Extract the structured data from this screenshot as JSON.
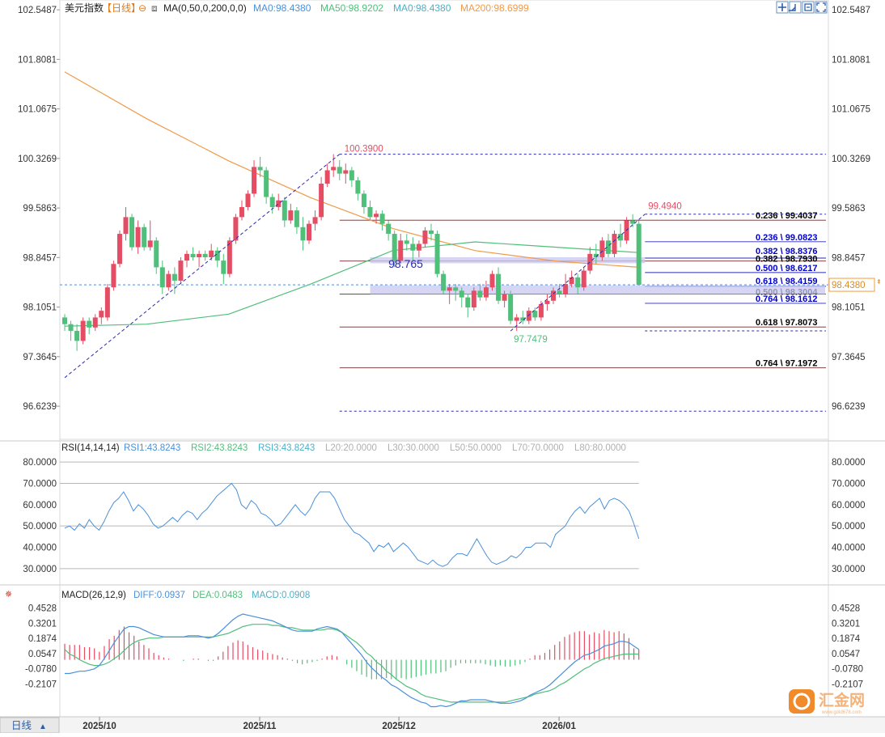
{
  "header": {
    "title": "美元指数",
    "period_tag": "【日线】",
    "ma_indicator": "MA(0,50,0,200,0,0)",
    "ma_values": [
      {
        "label": "MA0:98.4380",
        "color": "#4a90d9"
      },
      {
        "label": "MA50:98.9202",
        "color": "#4fbf7a"
      },
      {
        "label": "MA0:98.4380",
        "color": "#4ab0c8"
      },
      {
        "label": "MA200:98.6999",
        "color": "#f09a4a"
      }
    ],
    "tool_icons": [
      "crosshair-icon",
      "zoom-in-icon",
      "chart-settings-icon",
      "fullscreen-icon"
    ]
  },
  "price_axis": {
    "ticks": [
      "102.5487",
      "101.8081",
      "101.0675",
      "100.3269",
      "99.5863",
      "98.8457",
      "98.1051",
      "97.3645",
      "96.6239"
    ],
    "current_price": "98.4380"
  },
  "annotations": {
    "high_label": "100.3900",
    "recent_high_label": "99.4940",
    "low_label": "97.7479",
    "mid_label": "98.765",
    "fibs": [
      {
        "label": "0.236 \\ 99.4037",
        "color": "#000000"
      },
      {
        "label": "0.236 \\ 99.0823",
        "color": "#0000cc"
      },
      {
        "label": "0.382 \\ 98.8376",
        "color": "#0000cc"
      },
      {
        "label": "0.382 \\ 98.7930",
        "color": "#000000"
      },
      {
        "label": "0.500 \\ 98.6217",
        "color": "#0000cc"
      },
      {
        "label": "0.618 \\ 98.4159",
        "color": "#0000cc"
      },
      {
        "label": "0.500 \\ 98.3004",
        "color": "#000000"
      },
      {
        "label": "0.764 \\ 98.1612",
        "color": "#0000cc"
      },
      {
        "label": "0.618 \\ 97.8073",
        "color": "#000000"
      },
      {
        "label": "0.764 \\ 97.1972",
        "color": "#000000"
      }
    ]
  },
  "rsi": {
    "title": "RSI(14,14,14)",
    "values": [
      {
        "label": "RSI1:43.8243",
        "color": "#4a90d9"
      },
      {
        "label": "RSI2:43.8243",
        "color": "#4fbf7a"
      },
      {
        "label": "RSI3:43.8243",
        "color": "#4ab0c8"
      },
      {
        "label": "L20:20.0000",
        "color": "#b0b0b0"
      },
      {
        "label": "L30:30.0000",
        "color": "#b0b0b0"
      },
      {
        "label": "L50:50.0000",
        "color": "#b0b0b0"
      },
      {
        "label": "L70:70.0000",
        "color": "#b0b0b0"
      },
      {
        "label": "L80:80.0000",
        "color": "#b0b0b0"
      }
    ],
    "ticks": [
      "80.0000",
      "70.0000",
      "60.0000",
      "50.0000",
      "40.0000",
      "30.0000"
    ],
    "series": [
      49,
      50,
      48,
      51,
      49,
      53,
      50,
      48,
      52,
      57,
      61,
      63,
      66,
      62,
      57,
      60,
      58,
      55,
      51,
      49,
      50,
      52,
      54,
      52,
      55,
      57,
      56,
      53,
      56,
      58,
      61,
      64,
      66,
      68,
      70,
      67,
      60,
      58,
      62,
      60,
      56,
      55,
      53,
      50,
      51,
      54,
      57,
      60,
      57,
      55,
      58,
      63,
      66,
      66,
      66,
      63,
      58,
      53,
      50,
      47,
      46,
      44,
      42,
      38,
      41,
      40,
      42,
      38,
      40,
      42,
      40,
      37,
      34,
      33,
      32,
      34,
      32,
      31,
      32,
      35,
      37,
      37,
      36,
      40,
      44,
      40,
      36,
      33,
      32,
      33,
      34,
      36,
      35,
      37,
      40,
      40,
      42,
      42,
      42,
      40,
      46,
      48,
      50,
      54,
      57,
      59,
      56,
      59,
      61,
      63,
      58,
      62,
      63,
      62,
      60,
      57,
      51,
      44
    ]
  },
  "macd": {
    "title": "MACD(26,12,9)",
    "values": [
      {
        "label": "DIFF:0.0937",
        "color": "#4a90d9"
      },
      {
        "label": "DEA:0.0483",
        "color": "#4fbf7a"
      },
      {
        "label": "MACD:0.0908",
        "color": "#4ab0c8"
      }
    ],
    "ticks": [
      "0.4528",
      "0.3201",
      "0.1874",
      "0.0547",
      "-0.0780",
      "-0.2107"
    ],
    "diff": [
      -0.12,
      -0.12,
      -0.11,
      -0.1,
      -0.1,
      -0.09,
      -0.08,
      -0.05,
      0.01,
      0.08,
      0.15,
      0.21,
      0.27,
      0.29,
      0.29,
      0.28,
      0.26,
      0.24,
      0.22,
      0.21,
      0.2,
      0.2,
      0.2,
      0.2,
      0.2,
      0.21,
      0.21,
      0.21,
      0.2,
      0.19,
      0.2,
      0.23,
      0.27,
      0.31,
      0.35,
      0.38,
      0.4,
      0.39,
      0.38,
      0.37,
      0.36,
      0.35,
      0.34,
      0.32,
      0.3,
      0.28,
      0.26,
      0.25,
      0.25,
      0.25,
      0.25,
      0.27,
      0.28,
      0.29,
      0.28,
      0.27,
      0.24,
      0.19,
      0.14,
      0.09,
      0.04,
      -0.02,
      -0.07,
      -0.11,
      -0.15,
      -0.18,
      -0.22,
      -0.24,
      -0.27,
      -0.3,
      -0.33,
      -0.35,
      -0.37,
      -0.38,
      -0.41,
      -0.41,
      -0.4,
      -0.41,
      -0.4,
      -0.38,
      -0.36,
      -0.36,
      -0.35,
      -0.35,
      -0.35,
      -0.35,
      -0.36,
      -0.37,
      -0.38,
      -0.38,
      -0.38,
      -0.37,
      -0.36,
      -0.34,
      -0.31,
      -0.29,
      -0.27,
      -0.25,
      -0.22,
      -0.18,
      -0.14,
      -0.1,
      -0.06,
      -0.02,
      0.01,
      0.04,
      0.05,
      0.07,
      0.09,
      0.12,
      0.13,
      0.14,
      0.16,
      0.16,
      0.15,
      0.12,
      0.09
    ],
    "dea": [
      0.09,
      0.05,
      0.03,
      0.0,
      -0.02,
      -0.04,
      -0.05,
      -0.05,
      -0.04,
      -0.02,
      0.01,
      0.04,
      0.08,
      0.12,
      0.15,
      0.17,
      0.18,
      0.19,
      0.19,
      0.19,
      0.2,
      0.2,
      0.2,
      0.2,
      0.2,
      0.2,
      0.2,
      0.2,
      0.2,
      0.2,
      0.2,
      0.21,
      0.22,
      0.23,
      0.25,
      0.27,
      0.29,
      0.3,
      0.31,
      0.31,
      0.31,
      0.31,
      0.3,
      0.3,
      0.29,
      0.28,
      0.28,
      0.27,
      0.26,
      0.26,
      0.26,
      0.26,
      0.26,
      0.27,
      0.27,
      0.26,
      0.24,
      0.21,
      0.18,
      0.15,
      0.11,
      0.06,
      0.03,
      -0.02,
      -0.05,
      -0.1,
      -0.13,
      -0.17,
      -0.2,
      -0.23,
      -0.25,
      -0.27,
      -0.3,
      -0.32,
      -0.33,
      -0.34,
      -0.35,
      -0.36,
      -0.37,
      -0.37,
      -0.37,
      -0.37,
      -0.37,
      -0.37,
      -0.37,
      -0.37,
      -0.37,
      -0.37,
      -0.37,
      -0.37,
      -0.36,
      -0.35,
      -0.34,
      -0.33,
      -0.32,
      -0.3,
      -0.29,
      -0.28,
      -0.27,
      -0.25,
      -0.22,
      -0.2,
      -0.17,
      -0.14,
      -0.11,
      -0.08,
      -0.06,
      -0.03,
      -0.01,
      0.01,
      0.02,
      0.03,
      0.04,
      0.05,
      0.05,
      0.05,
      0.05
    ],
    "hist": [
      0.14,
      0.13,
      0.13,
      0.13,
      0.11,
      0.11,
      0.1,
      0.07,
      0.12,
      0.18,
      0.21,
      0.26,
      0.29,
      0.24,
      0.21,
      0.16,
      0.13,
      0.1,
      0.06,
      0.04,
      0.02,
      0.01,
      0.0,
      0.0,
      -0.01,
      0.0,
      0.01,
      0.01,
      0.0,
      -0.01,
      -0.01,
      0.03,
      0.07,
      0.12,
      0.15,
      0.17,
      0.16,
      0.13,
      0.11,
      0.09,
      0.08,
      0.06,
      0.05,
      0.04,
      0.02,
      0.01,
      -0.01,
      -0.03,
      -0.04,
      -0.03,
      -0.02,
      -0.01,
      0.01,
      0.03,
      0.04,
      0.03,
      0.0,
      -0.04,
      -0.07,
      -0.1,
      -0.13,
      -0.15,
      -0.17,
      -0.17,
      -0.17,
      -0.16,
      -0.17,
      -0.17,
      -0.16,
      -0.17,
      -0.16,
      -0.15,
      -0.14,
      -0.13,
      -0.12,
      -0.12,
      -0.11,
      -0.1,
      -0.07,
      -0.05,
      -0.03,
      -0.03,
      -0.03,
      -0.03,
      -0.03,
      -0.04,
      -0.05,
      -0.06,
      -0.05,
      -0.06,
      -0.06,
      -0.05,
      -0.04,
      -0.02,
      0.01,
      0.04,
      0.04,
      0.06,
      0.09,
      0.13,
      0.16,
      0.2,
      0.22,
      0.24,
      0.25,
      0.25,
      0.22,
      0.24,
      0.23,
      0.26,
      0.25,
      0.24,
      0.25,
      0.23,
      0.19,
      0.1,
      0.09
    ]
  },
  "time_axis": {
    "ticks": [
      {
        "label": "2025/10",
        "index": 5
      },
      {
        "label": "2025/11",
        "index": 28
      },
      {
        "label": "2025/12",
        "index": 48
      },
      {
        "label": "2026/01",
        "index": 71
      }
    ]
  },
  "footer": {
    "period_label": "日线",
    "period_arrow": "▲"
  },
  "watermark": {
    "text": "汇金网",
    "sub": "www.gold678.com"
  },
  "colors": {
    "up": "#e54d64",
    "down": "#4fbf7a",
    "ma200": "#f09a4a",
    "ma50": "#4fbf7a"
  },
  "chart_data": {
    "type": "candlestick",
    "title": "美元指数",
    "x_start": "2025/09/22",
    "ylim": [
      96.25,
      102.55
    ],
    "candles": [
      [
        97.95,
        98.0,
        97.75,
        97.85
      ],
      [
        97.85,
        97.9,
        97.6,
        97.75
      ],
      [
        97.75,
        97.85,
        97.45,
        97.6
      ],
      [
        97.6,
        97.95,
        97.55,
        97.9
      ],
      [
        97.9,
        97.95,
        97.7,
        97.8
      ],
      [
        97.8,
        98.0,
        97.75,
        97.95
      ],
      [
        97.95,
        98.1,
        97.85,
        98.05
      ],
      [
        97.95,
        98.45,
        97.9,
        98.4
      ],
      [
        98.4,
        98.8,
        98.35,
        98.75
      ],
      [
        98.75,
        99.25,
        98.7,
        99.2
      ],
      [
        99.2,
        99.6,
        99.1,
        99.45
      ],
      [
        99.45,
        99.5,
        98.95,
        99.0
      ],
      [
        99.0,
        99.4,
        98.9,
        99.3
      ],
      [
        99.3,
        99.35,
        98.95,
        99.0
      ],
      [
        99.0,
        99.4,
        98.95,
        99.1
      ],
      [
        99.1,
        99.15,
        98.6,
        98.7
      ],
      [
        98.7,
        98.8,
        98.3,
        98.4
      ],
      [
        98.4,
        98.65,
        98.35,
        98.6
      ],
      [
        98.6,
        98.7,
        98.3,
        98.5
      ],
      [
        98.5,
        98.85,
        98.45,
        98.8
      ],
      [
        98.8,
        98.95,
        98.7,
        98.9
      ],
      [
        98.9,
        99.0,
        98.8,
        98.85
      ],
      [
        98.85,
        98.95,
        98.7,
        98.9
      ],
      [
        98.9,
        98.95,
        98.8,
        98.85
      ],
      [
        98.85,
        99.05,
        98.8,
        98.95
      ],
      [
        98.95,
        99.0,
        98.7,
        98.8
      ],
      [
        98.8,
        98.9,
        98.45,
        98.6
      ],
      [
        98.6,
        99.15,
        98.55,
        99.1
      ],
      [
        99.1,
        99.5,
        99.05,
        99.45
      ],
      [
        99.45,
        99.7,
        99.4,
        99.6
      ],
      [
        99.6,
        99.85,
        99.55,
        99.8
      ],
      [
        99.8,
        100.3,
        99.75,
        100.2
      ],
      [
        100.2,
        100.35,
        100.05,
        100.15
      ],
      [
        100.15,
        100.2,
        99.65,
        99.75
      ],
      [
        99.75,
        99.8,
        99.5,
        99.6
      ],
      [
        99.6,
        99.8,
        99.55,
        99.7
      ],
      [
        99.7,
        99.75,
        99.3,
        99.4
      ],
      [
        99.4,
        99.65,
        99.35,
        99.55
      ],
      [
        99.55,
        99.6,
        99.2,
        99.3
      ],
      [
        99.3,
        99.45,
        98.95,
        99.1
      ],
      [
        99.1,
        99.4,
        99.05,
        99.35
      ],
      [
        99.35,
        99.55,
        99.25,
        99.45
      ],
      [
        99.45,
        100.05,
        99.4,
        99.95
      ],
      [
        99.95,
        100.25,
        99.9,
        100.15
      ],
      [
        100.15,
        100.39,
        100.05,
        100.2
      ],
      [
        100.2,
        100.3,
        100.0,
        100.1
      ],
      [
        100.1,
        100.25,
        99.95,
        100.15
      ],
      [
        100.15,
        100.2,
        99.9,
        100.0
      ],
      [
        100.0,
        100.05,
        99.7,
        99.8
      ],
      [
        99.8,
        99.85,
        99.5,
        99.6
      ],
      [
        99.6,
        99.7,
        99.4,
        99.45
      ],
      [
        99.45,
        99.55,
        99.35,
        99.5
      ],
      [
        99.5,
        99.55,
        99.25,
        99.35
      ],
      [
        99.35,
        99.4,
        99.1,
        99.2
      ],
      [
        99.2,
        99.25,
        98.7,
        98.8
      ],
      [
        98.8,
        99.2,
        98.75,
        99.1
      ],
      [
        99.1,
        99.2,
        98.95,
        99.05
      ],
      [
        99.05,
        99.15,
        98.8,
        98.95
      ],
      [
        98.95,
        99.1,
        98.85,
        99.05
      ],
      [
        99.05,
        99.3,
        99.0,
        99.25
      ],
      [
        99.25,
        99.35,
        99.1,
        99.2
      ],
      [
        99.2,
        99.25,
        98.55,
        98.6
      ],
      [
        98.6,
        98.65,
        98.3,
        98.35
      ],
      [
        98.35,
        98.45,
        98.15,
        98.4
      ],
      [
        98.4,
        98.45,
        98.2,
        98.35
      ],
      [
        98.35,
        98.4,
        98.1,
        98.25
      ],
      [
        98.25,
        98.3,
        97.95,
        98.1
      ],
      [
        98.1,
        98.4,
        98.05,
        98.35
      ],
      [
        98.35,
        98.45,
        98.2,
        98.25
      ],
      [
        98.25,
        98.5,
        98.2,
        98.4
      ],
      [
        98.4,
        98.65,
        98.35,
        98.6
      ],
      [
        98.6,
        98.7,
        98.15,
        98.2
      ],
      [
        98.2,
        98.35,
        98.1,
        98.3
      ],
      [
        98.3,
        98.35,
        97.85,
        97.9
      ],
      [
        97.9,
        98.0,
        97.75,
        97.95
      ],
      [
        97.95,
        98.05,
        97.85,
        97.9
      ],
      [
        97.9,
        98.1,
        97.85,
        98.05
      ],
      [
        98.05,
        98.1,
        97.9,
        97.95
      ],
      [
        97.95,
        98.2,
        97.9,
        98.15
      ],
      [
        98.15,
        98.3,
        98.05,
        98.2
      ],
      [
        98.2,
        98.4,
        98.15,
        98.35
      ],
      [
        98.35,
        98.45,
        98.25,
        98.3
      ],
      [
        98.3,
        98.6,
        98.25,
        98.45
      ],
      [
        98.45,
        98.65,
        98.4,
        98.55
      ],
      [
        98.55,
        98.6,
        98.3,
        98.4
      ],
      [
        98.4,
        98.7,
        98.35,
        98.65
      ],
      [
        98.65,
        99.0,
        98.6,
        98.9
      ],
      [
        98.9,
        99.05,
        98.75,
        98.85
      ],
      [
        98.85,
        99.15,
        98.8,
        99.1
      ],
      [
        99.1,
        99.2,
        98.85,
        98.9
      ],
      [
        98.9,
        99.25,
        98.85,
        99.2
      ],
      [
        99.2,
        99.35,
        99.0,
        99.1
      ],
      [
        99.1,
        99.45,
        99.05,
        99.4
      ],
      [
        99.4,
        99.494,
        99.3,
        99.35
      ],
      [
        99.35,
        99.4,
        98.45,
        98.438
      ]
    ],
    "ma200": [
      101.62,
      100.92,
      100.29,
      99.74,
      99.28,
      98.95,
      98.79,
      98.7
    ],
    "ma50": [
      97.82,
      97.85,
      98.0,
      98.45,
      98.95,
      99.08,
      99.0,
      98.92
    ],
    "rsi_ylim": [
      25,
      85
    ],
    "macd_ylim": [
      -0.47,
      0.52
    ]
  }
}
